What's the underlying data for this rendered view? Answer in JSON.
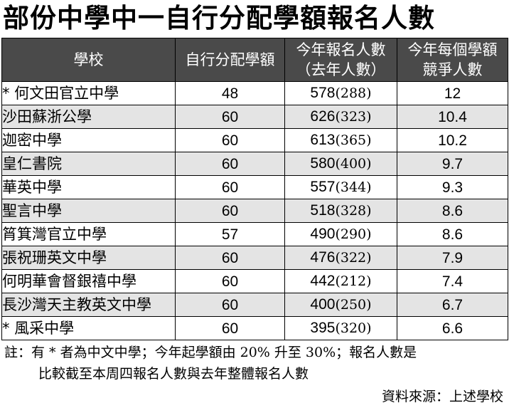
{
  "title": "部份中學中一自行分配學額報名人數",
  "chart_data": {
    "type": "table",
    "columns": [
      {
        "line1": "學校",
        "line2": ""
      },
      {
        "line1": "自行分配學額",
        "line2": ""
      },
      {
        "line1": "今年報名人數",
        "line2": "（去年人數）"
      },
      {
        "line1": "今年每個學額",
        "line2": "競爭人數"
      }
    ],
    "rows": [
      {
        "school": "* 何文田官立中學",
        "quota": "48",
        "apps": "578",
        "prev": "(288)",
        "ratio": "12"
      },
      {
        "school": "沙田蘇浙公學",
        "quota": "60",
        "apps": "626",
        "prev": "(323)",
        "ratio": "10.4"
      },
      {
        "school": "迦密中學",
        "quota": "60",
        "apps": "613",
        "prev": "(365)",
        "ratio": "10.2"
      },
      {
        "school": "皇仁書院",
        "quota": "60",
        "apps": "580",
        "prev": "(400)",
        "ratio": "9.7"
      },
      {
        "school": "華英中學",
        "quota": "60",
        "apps": "557",
        "prev": "(344)",
        "ratio": "9.3"
      },
      {
        "school": "聖言中學",
        "quota": "60",
        "apps": "518",
        "prev": "(328)",
        "ratio": "8.6"
      },
      {
        "school": "筲箕灣官立中學",
        "quota": "57",
        "apps": "490",
        "prev": "(290)",
        "ratio": "8.6"
      },
      {
        "school": "張祝珊英文中學",
        "quota": "60",
        "apps": "476",
        "prev": "(322)",
        "ratio": "7.9"
      },
      {
        "school": "何明華會督銀禧中學",
        "quota": "60",
        "apps": "442",
        "prev": "(212)",
        "ratio": "7.4"
      },
      {
        "school": "長沙灣天主教英文中學",
        "quota": "60",
        "apps": "400",
        "prev": "(250)",
        "ratio": "6.7"
      },
      {
        "school": "* 風采中學",
        "quota": "60",
        "apps": "395",
        "prev": "(320)",
        "ratio": "6.6"
      }
    ]
  },
  "note": {
    "line1": "註：有 * 者為中文中學；今年起學額由 20% 升至 30%；報名人數是",
    "line2": "比較截至本周四報名人數與去年整體報名人數"
  },
  "source": "資料來源：上述學校",
  "colors": {
    "header_bg": "#4a4a4a",
    "shade_row": "#e4e4e4"
  }
}
